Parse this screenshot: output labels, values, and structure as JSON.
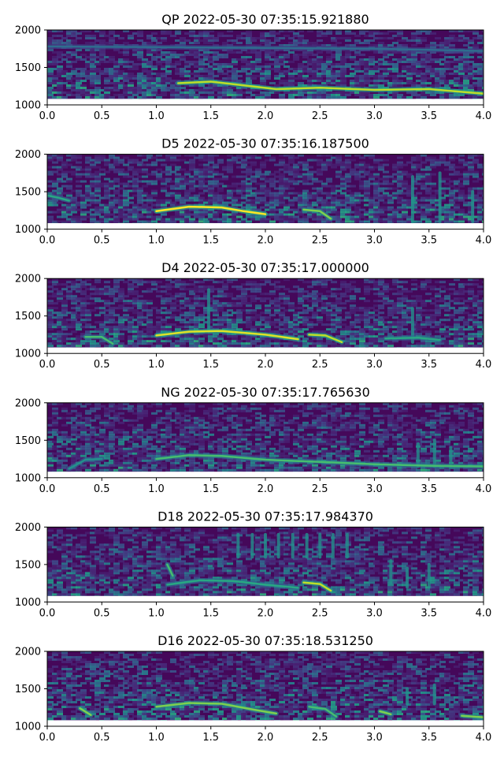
{
  "chart_data": [
    {
      "type": "heatmap",
      "title": "QP 2022-05-30 07:35:15.921880",
      "xlim": [
        0,
        4
      ],
      "ylim": [
        1000,
        2000
      ],
      "xticks": [
        "0.0",
        "0.5",
        "1.0",
        "1.5",
        "2.0",
        "2.5",
        "3.0",
        "3.5",
        "4.0"
      ],
      "yticks": [
        "1000",
        "1500",
        "2000"
      ],
      "ridges": [
        {
          "points": [
            [
              1.2,
              1290
            ],
            [
              1.5,
              1310
            ],
            [
              1.8,
              1260
            ],
            [
              2.1,
              1210
            ],
            [
              2.5,
              1230
            ],
            [
              3.0,
              1200
            ],
            [
              3.5,
              1210
            ],
            [
              4.0,
              1150
            ]
          ],
          "strength": 0.9
        },
        {
          "points": [
            [
              0.0,
              1780
            ],
            [
              1.0,
              1770
            ],
            [
              2.0,
              1760
            ],
            [
              3.0,
              1750
            ],
            [
              4.0,
              1720
            ]
          ],
          "strength": 0.35
        }
      ],
      "streaks": []
    },
    {
      "type": "heatmap",
      "title": "D5 2022-05-30 07:35:16.187500",
      "xlim": [
        0,
        4
      ],
      "ylim": [
        1000,
        2000
      ],
      "xticks": [
        "0.0",
        "0.5",
        "1.0",
        "1.5",
        "2.0",
        "2.5",
        "3.0",
        "3.5",
        "4.0"
      ],
      "yticks": [
        "1000",
        "1500",
        "2000"
      ],
      "ridges": [
        {
          "points": [
            [
              1.0,
              1240
            ],
            [
              1.3,
              1300
            ],
            [
              1.6,
              1290
            ],
            [
              1.8,
              1240
            ],
            [
              2.0,
              1200
            ]
          ],
          "strength": 1.0
        },
        {
          "points": [
            [
              2.35,
              1260
            ],
            [
              2.5,
              1240
            ],
            [
              2.6,
              1140
            ]
          ],
          "strength": 0.8
        },
        {
          "points": [
            [
              0.0,
              1450
            ],
            [
              0.1,
              1420
            ],
            [
              0.2,
              1380
            ]
          ],
          "strength": 0.6
        }
      ],
      "streaks": [
        {
          "x": 3.35,
          "y0": 1100,
          "y1": 1700
        },
        {
          "x": 3.6,
          "y0": 1100,
          "y1": 1750
        },
        {
          "x": 3.9,
          "y0": 1100,
          "y1": 1500
        }
      ]
    },
    {
      "type": "heatmap",
      "title": "D4 2022-05-30 07:35:17.000000",
      "xlim": [
        0,
        4
      ],
      "ylim": [
        1000,
        2000
      ],
      "xticks": [
        "0.0",
        "0.5",
        "1.0",
        "1.5",
        "2.0",
        "2.5",
        "3.0",
        "3.5",
        "4.0"
      ],
      "yticks": [
        "1000",
        "1500",
        "2000"
      ],
      "ridges": [
        {
          "points": [
            [
              1.0,
              1240
            ],
            [
              1.3,
              1290
            ],
            [
              1.6,
              1300
            ],
            [
              2.0,
              1250
            ],
            [
              2.3,
              1190
            ]
          ],
          "strength": 0.95
        },
        {
          "points": [
            [
              2.4,
              1250
            ],
            [
              2.55,
              1240
            ],
            [
              2.7,
              1150
            ]
          ],
          "strength": 0.9
        },
        {
          "points": [
            [
              0.35,
              1220
            ],
            [
              0.5,
              1220
            ],
            [
              0.6,
              1130
            ]
          ],
          "strength": 0.7
        },
        {
          "points": [
            [
              3.1,
              1200
            ],
            [
              3.4,
              1210
            ],
            [
              3.6,
              1180
            ]
          ],
          "strength": 0.6
        }
      ],
      "streaks": [
        {
          "x": 1.48,
          "y0": 1300,
          "y1": 1850
        },
        {
          "x": 3.35,
          "y0": 1150,
          "y1": 1600
        }
      ]
    },
    {
      "type": "heatmap",
      "title": "NG 2022-05-30 07:35:17.765630",
      "xlim": [
        0,
        4
      ],
      "ylim": [
        1000,
        2000
      ],
      "xticks": [
        "0.0",
        "0.5",
        "1.0",
        "1.5",
        "2.0",
        "2.5",
        "3.0",
        "3.5",
        "4.0"
      ],
      "yticks": [
        "1000",
        "1500",
        "2000"
      ],
      "ridges": [
        {
          "points": [
            [
              1.0,
              1250
            ],
            [
              1.3,
              1300
            ],
            [
              1.6,
              1290
            ],
            [
              2.0,
              1240
            ],
            [
              2.5,
              1210
            ],
            [
              3.0,
              1180
            ],
            [
              3.5,
              1160
            ],
            [
              4.0,
              1150
            ]
          ],
          "strength": 0.7
        },
        {
          "points": [
            [
              0.2,
              1120
            ],
            [
              0.35,
              1240
            ],
            [
              0.5,
              1250
            ]
          ],
          "strength": 0.5
        }
      ],
      "streaks": [
        {
          "x": 3.4,
          "y0": 1150,
          "y1": 1450
        },
        {
          "x": 3.55,
          "y0": 1150,
          "y1": 1500
        },
        {
          "x": 3.7,
          "y0": 1150,
          "y1": 1400
        }
      ]
    },
    {
      "type": "heatmap",
      "title": "D18 2022-05-30 07:35:17.984370",
      "xlim": [
        0,
        4
      ],
      "ylim": [
        1000,
        2000
      ],
      "xticks": [
        "0.0",
        "0.5",
        "1.0",
        "1.5",
        "2.0",
        "2.5",
        "3.0",
        "3.5",
        "4.0"
      ],
      "yticks": [
        "1000",
        "1500",
        "2000"
      ],
      "ridges": [
        {
          "points": [
            [
              1.1,
              1230
            ],
            [
              1.4,
              1290
            ],
            [
              1.7,
              1280
            ],
            [
              2.0,
              1230
            ],
            [
              2.3,
              1190
            ]
          ],
          "strength": 0.6
        },
        {
          "points": [
            [
              2.35,
              1260
            ],
            [
              2.5,
              1240
            ],
            [
              2.6,
              1150
            ]
          ],
          "strength": 0.9
        },
        {
          "points": [
            [
              1.1,
              1500
            ],
            [
              1.15,
              1350
            ]
          ],
          "strength": 0.7
        }
      ],
      "streaks": [
        {
          "x": 1.75,
          "y0": 1600,
          "y1": 1900
        },
        {
          "x": 1.88,
          "y0": 1600,
          "y1": 1900
        },
        {
          "x": 2.0,
          "y0": 1600,
          "y1": 1900
        },
        {
          "x": 2.12,
          "y0": 1600,
          "y1": 1900
        },
        {
          "x": 2.25,
          "y0": 1600,
          "y1": 1900
        },
        {
          "x": 2.38,
          "y0": 1600,
          "y1": 1900
        },
        {
          "x": 2.5,
          "y0": 1600,
          "y1": 1900
        },
        {
          "x": 2.62,
          "y0": 1600,
          "y1": 1900
        },
        {
          "x": 2.75,
          "y0": 1600,
          "y1": 1900
        },
        {
          "x": 3.15,
          "y0": 1250,
          "y1": 1550
        },
        {
          "x": 3.3,
          "y0": 1200,
          "y1": 1450
        },
        {
          "x": 3.5,
          "y0": 1200,
          "y1": 1500
        }
      ]
    },
    {
      "type": "heatmap",
      "title": "D16 2022-05-30 07:35:18.531250",
      "xlim": [
        0,
        4
      ],
      "ylim": [
        1000,
        2000
      ],
      "xticks": [
        "0.0",
        "0.5",
        "1.0",
        "1.5",
        "2.0",
        "2.5",
        "3.0",
        "3.5",
        "4.0"
      ],
      "yticks": [
        "1000",
        "1500",
        "2000"
      ],
      "ridges": [
        {
          "points": [
            [
              1.0,
              1260
            ],
            [
              1.3,
              1310
            ],
            [
              1.6,
              1300
            ],
            [
              1.9,
              1220
            ],
            [
              2.1,
              1170
            ]
          ],
          "strength": 0.8
        },
        {
          "points": [
            [
              2.4,
              1260
            ],
            [
              2.55,
              1230
            ],
            [
              2.65,
              1130
            ]
          ],
          "strength": 0.7
        },
        {
          "points": [
            [
              0.3,
              1240
            ],
            [
              0.4,
              1150
            ]
          ],
          "strength": 0.8
        },
        {
          "points": [
            [
              3.05,
              1200
            ],
            [
              3.15,
              1160
            ]
          ],
          "strength": 0.8
        },
        {
          "points": [
            [
              3.8,
              1140
            ],
            [
              4.0,
              1120
            ]
          ],
          "strength": 0.8
        }
      ],
      "streaks": [
        {
          "x": 3.3,
          "y0": 1300,
          "y1": 1500
        },
        {
          "x": 3.55,
          "y0": 1300,
          "y1": 1550
        }
      ]
    }
  ]
}
